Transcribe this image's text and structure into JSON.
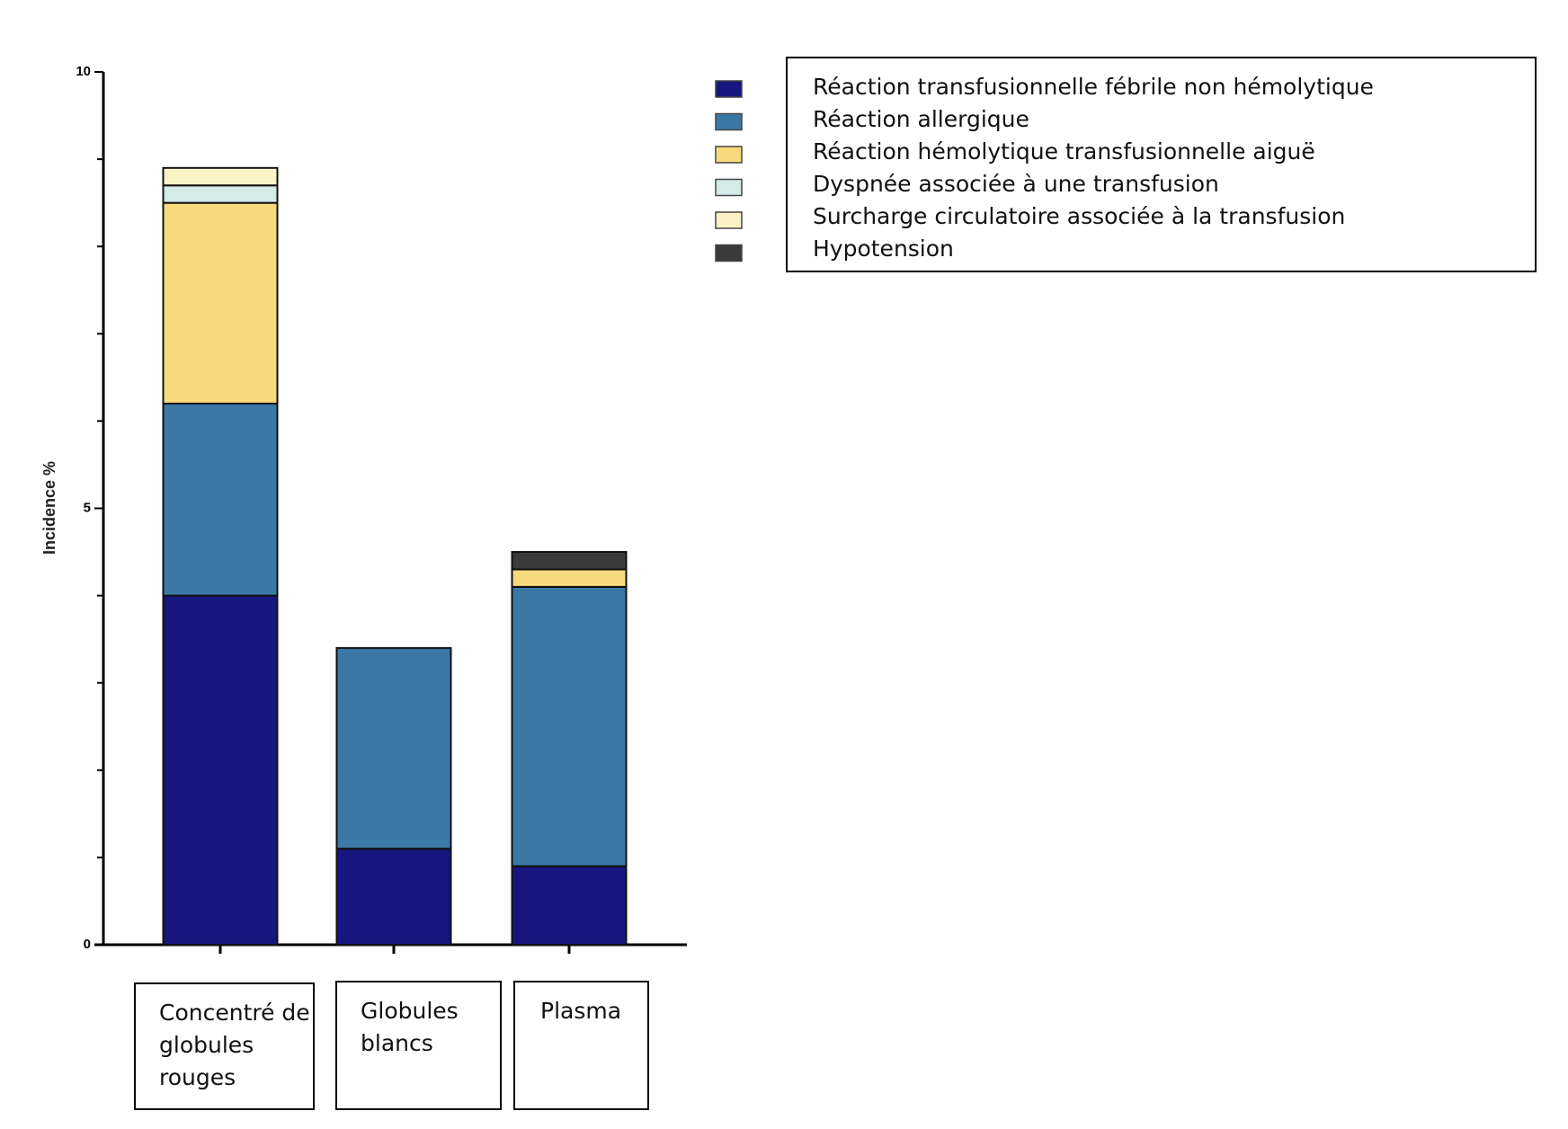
{
  "chart_data": {
    "type": "stacked_bar",
    "y_label": "Incidence %",
    "categories": [
      "Concentré de globules rouges",
      "Globules blancs",
      "Plasma"
    ],
    "series": [
      {
        "name": "Réaction transfusionnelle fébrile non hémolytique",
        "color": "#16167e",
        "values": [
          4.0,
          1.1,
          0.9
        ]
      },
      {
        "name": "Réaction allergique",
        "color": "#3b78a6",
        "values": [
          2.2,
          2.3,
          3.2
        ]
      },
      {
        "name": "Réaction hémolytique transfusionnelle aiguë",
        "color": "#f7da7c",
        "values": [
          2.3,
          0,
          0.2
        ]
      },
      {
        "name": "Dyspnée associée à une transfusion",
        "color": "#d4ebe8",
        "values": [
          0.2,
          0,
          0
        ]
      },
      {
        "name": "Surcharge circulatoire associée à la transfusion",
        "color": "#fbf3c6",
        "values": [
          0.2,
          0,
          0
        ]
      },
      {
        "name": "Hypotension",
        "color": "#3a3a3a",
        "values": [
          0,
          0,
          0.2
        ]
      }
    ],
    "ylim": [
      0,
      10
    ],
    "yticks": [
      0,
      5,
      10
    ],
    "minor_yticks": [
      1,
      2,
      3,
      4,
      6,
      7,
      8,
      9
    ]
  }
}
